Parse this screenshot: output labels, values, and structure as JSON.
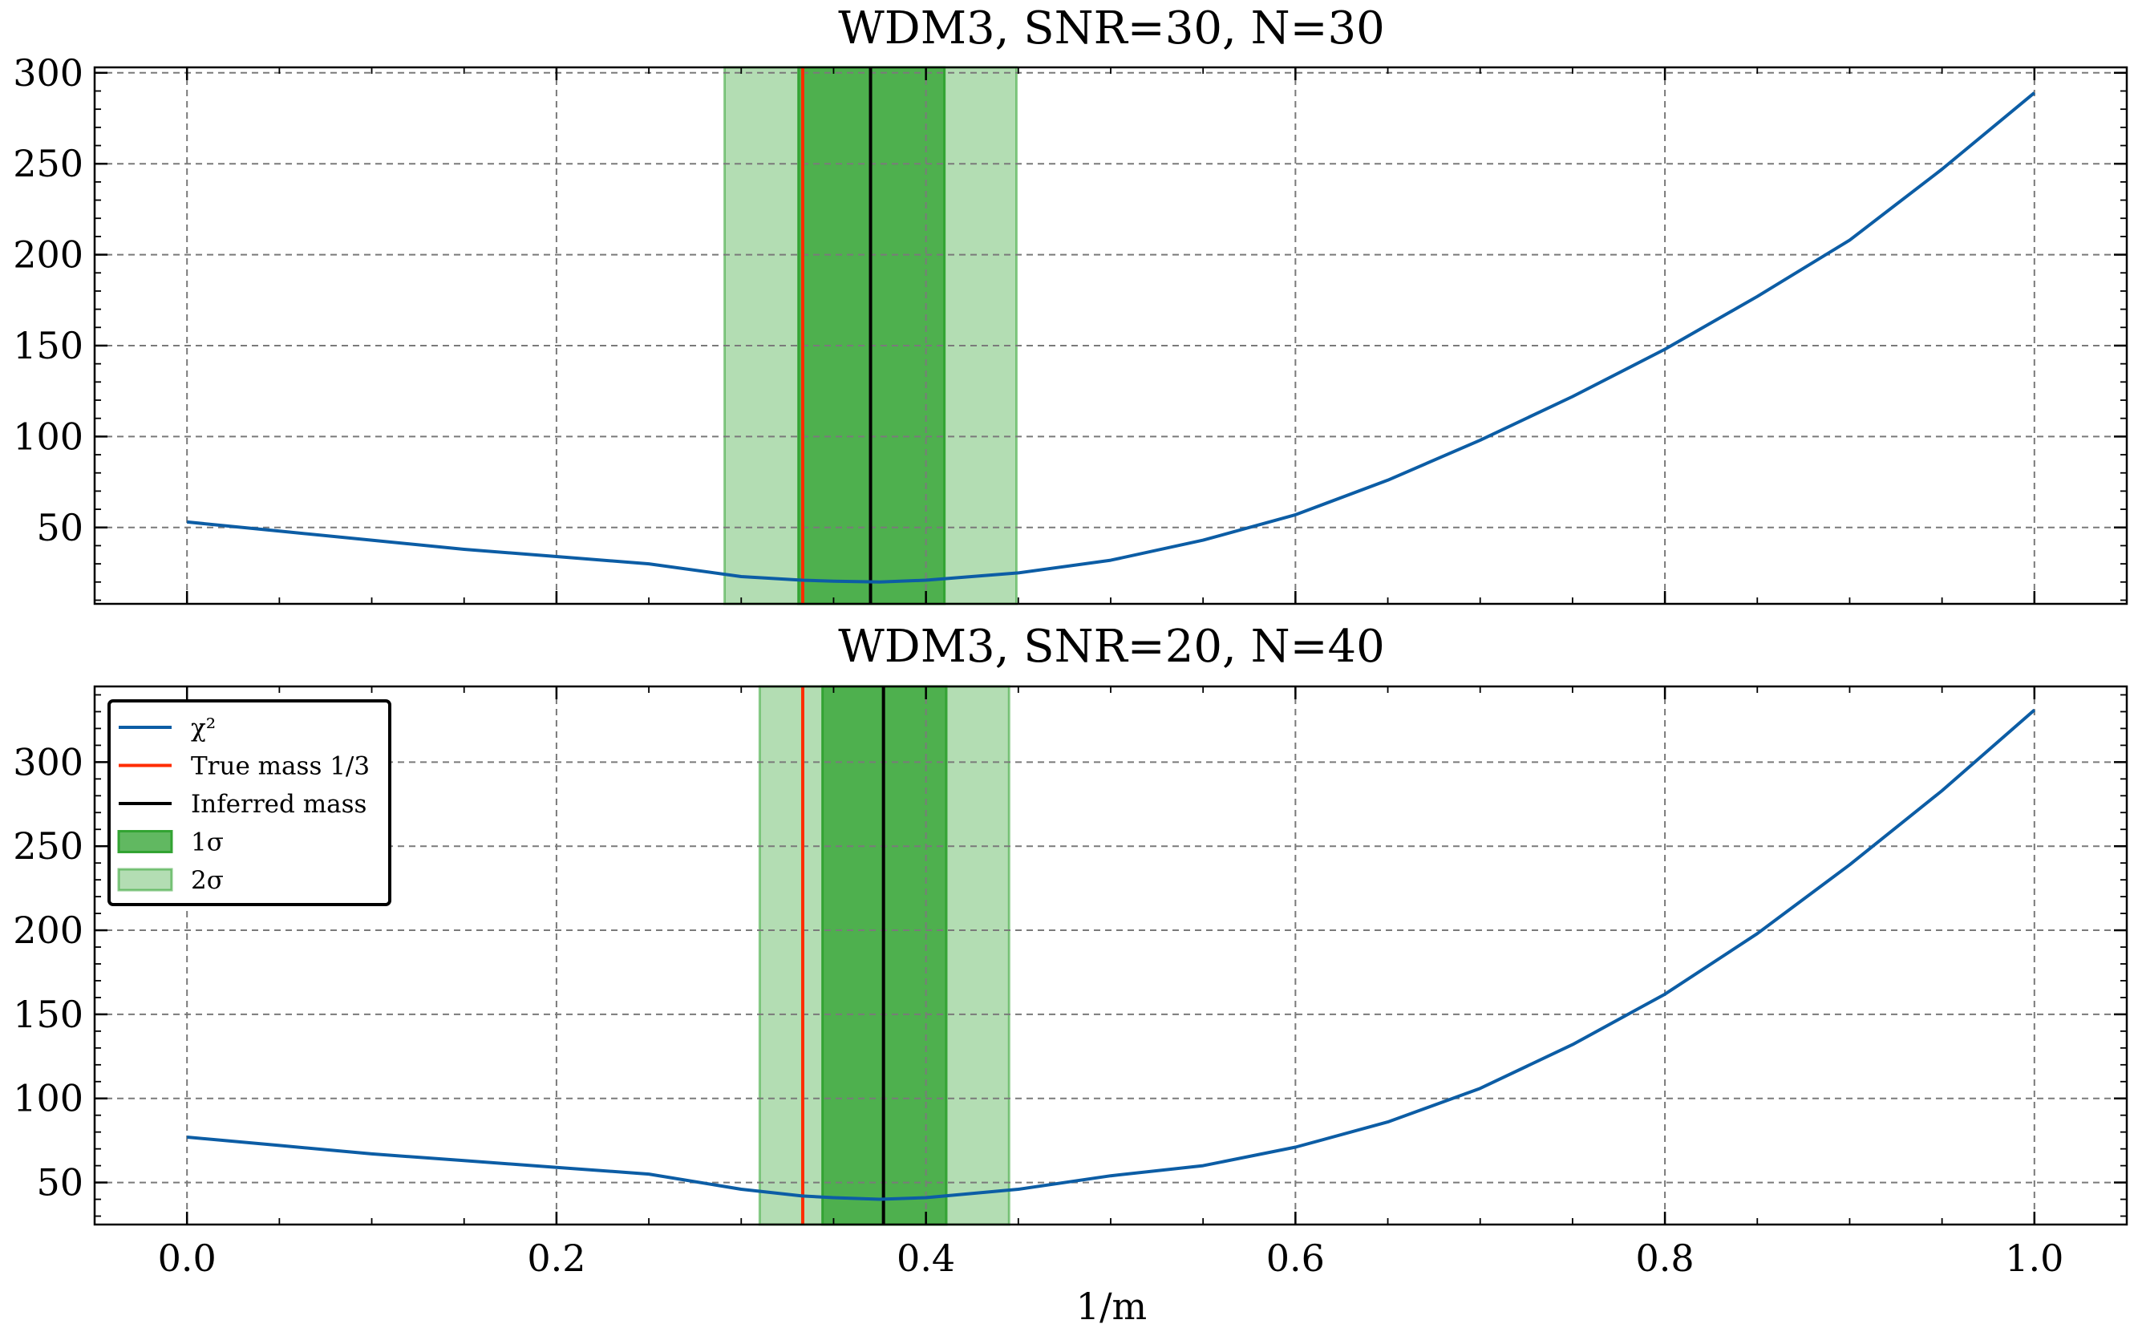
{
  "chart_data": [
    {
      "type": "line",
      "title": "WDM3, SNR=30, N=30",
      "xlabel": "",
      "ylabel": "",
      "xlim": [
        -0.05,
        1.05
      ],
      "ylim": [
        8,
        303
      ],
      "xticks": [
        0.0,
        0.2,
        0.4,
        0.6,
        0.8,
        1.0
      ],
      "xtick_labels": [
        "",
        "",
        "",
        "",
        "",
        ""
      ],
      "yticks": [
        50,
        100,
        150,
        200,
        250,
        300
      ],
      "ytick_labels": [
        "50",
        "100",
        "150",
        "200",
        "250",
        "300"
      ],
      "grid": true,
      "legend": null,
      "series": [
        {
          "name": "χ²",
          "color": "#0C5DA5",
          "x": [
            0.0,
            0.05,
            0.1,
            0.15,
            0.2,
            0.25,
            0.3,
            0.333,
            0.35,
            0.375,
            0.4,
            0.45,
            0.5,
            0.55,
            0.6,
            0.65,
            0.7,
            0.75,
            0.8,
            0.85,
            0.9,
            0.95,
            1.0
          ],
          "y": [
            53,
            48,
            43,
            38,
            34,
            30,
            23,
            21,
            20.5,
            20,
            21,
            25,
            32,
            43,
            57,
            76,
            98,
            122,
            148,
            177,
            208,
            247,
            289
          ]
        }
      ],
      "true_mass": {
        "label": "True mass 1/3",
        "x": 0.3333,
        "color": "#FF2C00"
      },
      "inferred_mass": {
        "label": "Inferred mass",
        "x": 0.37,
        "color": "#000000"
      },
      "bands": [
        {
          "label": "1σ",
          "x0": 0.331,
          "x1": 0.41,
          "color": "#2ca02c",
          "opacity": 0.75
        },
        {
          "label": "2σ",
          "x0": 0.291,
          "x1": 0.449,
          "color": "#2ca02c",
          "opacity": 0.36
        }
      ]
    },
    {
      "type": "line",
      "title": "WDM3, SNR=20, N=40",
      "xlabel": "1/m",
      "ylabel": "",
      "xlim": [
        -0.05,
        1.05
      ],
      "ylim": [
        25,
        345
      ],
      "xticks": [
        0.0,
        0.2,
        0.4,
        0.6,
        0.8,
        1.0
      ],
      "xtick_labels": [
        "0.0",
        "0.2",
        "0.4",
        "0.6",
        "0.8",
        "1.0"
      ],
      "yticks": [
        50,
        100,
        150,
        200,
        250,
        300
      ],
      "ytick_labels": [
        "50",
        "100",
        "150",
        "200",
        "250",
        "300"
      ],
      "grid": true,
      "legend": {
        "placement": "upper-left",
        "entries": [
          {
            "label": "χ²",
            "kind": "line",
            "color": "#0C5DA5"
          },
          {
            "label": "True mass 1/3",
            "kind": "line",
            "color": "#FF2C00"
          },
          {
            "label": "Inferred mass",
            "kind": "line",
            "color": "#000000"
          },
          {
            "label": "1σ",
            "kind": "patch",
            "color": "#2ca02c",
            "opacity": 0.75
          },
          {
            "label": "2σ",
            "kind": "patch",
            "color": "#2ca02c",
            "opacity": 0.36
          }
        ]
      },
      "series": [
        {
          "name": "χ²",
          "color": "#0C5DA5",
          "x": [
            0.0,
            0.05,
            0.1,
            0.15,
            0.2,
            0.25,
            0.3,
            0.333,
            0.35,
            0.375,
            0.4,
            0.45,
            0.5,
            0.55,
            0.6,
            0.65,
            0.7,
            0.75,
            0.8,
            0.85,
            0.9,
            0.95,
            1.0
          ],
          "y": [
            77,
            72,
            67,
            63,
            59,
            55,
            46,
            42,
            41,
            40,
            41,
            46,
            54,
            60,
            71,
            86,
            106,
            132,
            162,
            198,
            239,
            283,
            331
          ]
        }
      ],
      "true_mass": {
        "label": "True mass 1/3",
        "x": 0.3333,
        "color": "#FF2C00"
      },
      "inferred_mass": {
        "label": "Inferred mass",
        "x": 0.377,
        "color": "#000000"
      },
      "bands": [
        {
          "label": "1σ",
          "x0": 0.344,
          "x1": 0.411,
          "color": "#2ca02c",
          "opacity": 0.75
        },
        {
          "label": "2σ",
          "x0": 0.31,
          "x1": 0.445,
          "color": "#2ca02c",
          "opacity": 0.36
        }
      ]
    }
  ]
}
